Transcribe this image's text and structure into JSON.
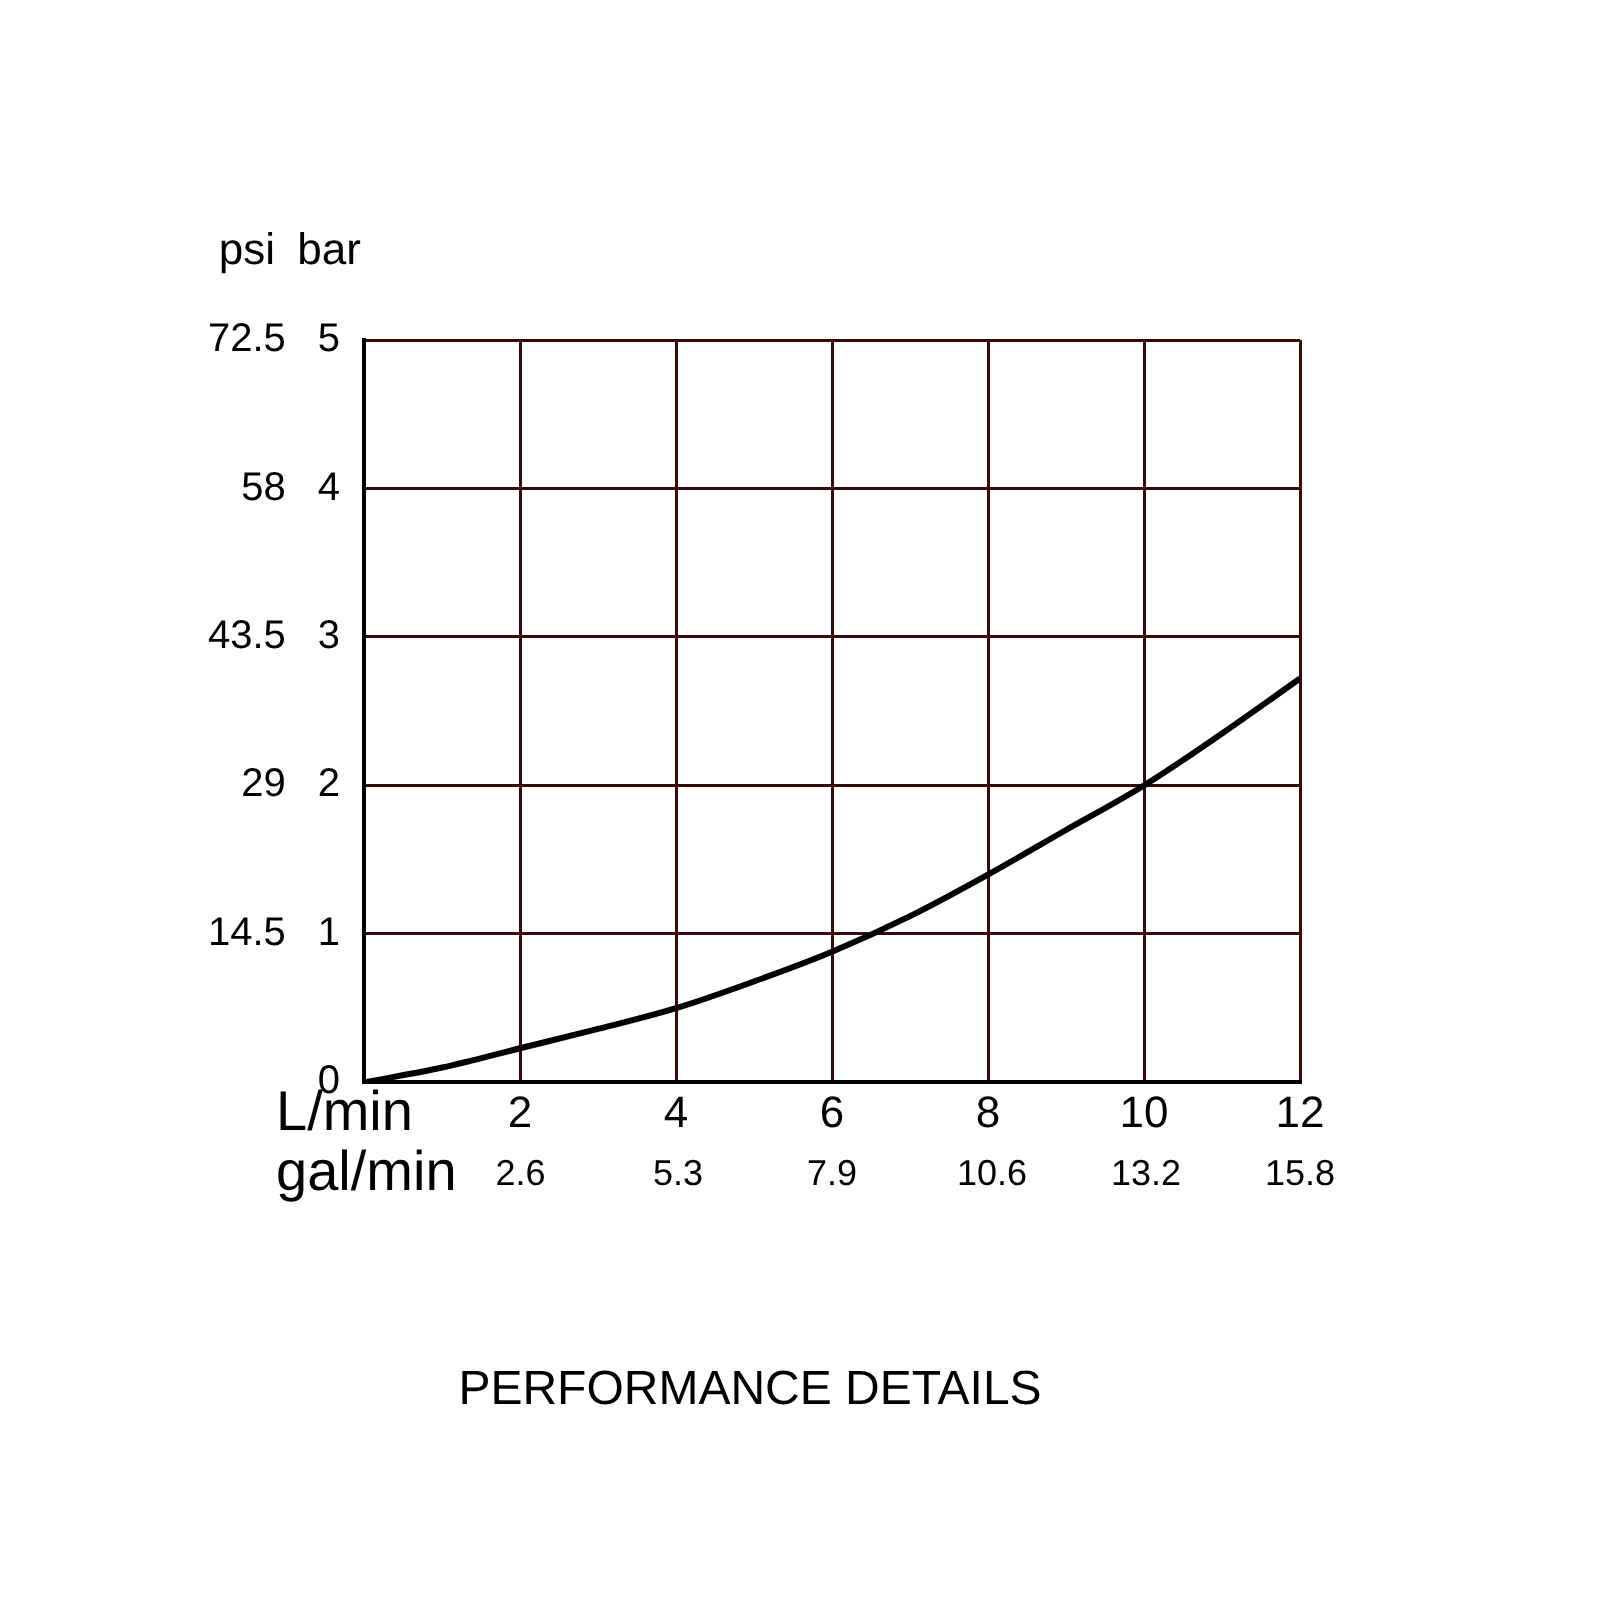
{
  "chart_data": {
    "type": "line",
    "title": "PERFORMANCE DETAILS",
    "xlabel": "L/min",
    "x2label": "gal/min",
    "ylabel": "bar",
    "y2label": "psi",
    "x": [
      0,
      1,
      2,
      3,
      4,
      5,
      6,
      7,
      8,
      9,
      10,
      11,
      12
    ],
    "series": [
      {
        "color": "#000000",
        "values": [
          0,
          0.1,
          0.23,
          0.36,
          0.5,
          0.68,
          0.88,
          1.12,
          1.4,
          1.7,
          2.0,
          2.35,
          2.72
        ]
      }
    ],
    "xlim": [
      0,
      12
    ],
    "xticks": [
      {
        "value": 0,
        "label": null
      },
      2,
      4,
      6,
      8,
      10,
      12
    ],
    "x2lim": [
      0,
      15.8
    ],
    "x2ticks": [
      {
        "value": 2.64,
        "label": "2.6"
      },
      5.3,
      7.9,
      10.6,
      13.2,
      15.8
    ],
    "ylim": [
      0,
      5
    ],
    "yticks": [
      0,
      1,
      2,
      3,
      4,
      5
    ],
    "y2lim": [
      0,
      72.5
    ],
    "y2ticks": [
      14.5,
      29,
      43.5,
      58,
      72.5
    ],
    "grid": true,
    "legend": false,
    "marker": "none",
    "line_style": "solid"
  }
}
